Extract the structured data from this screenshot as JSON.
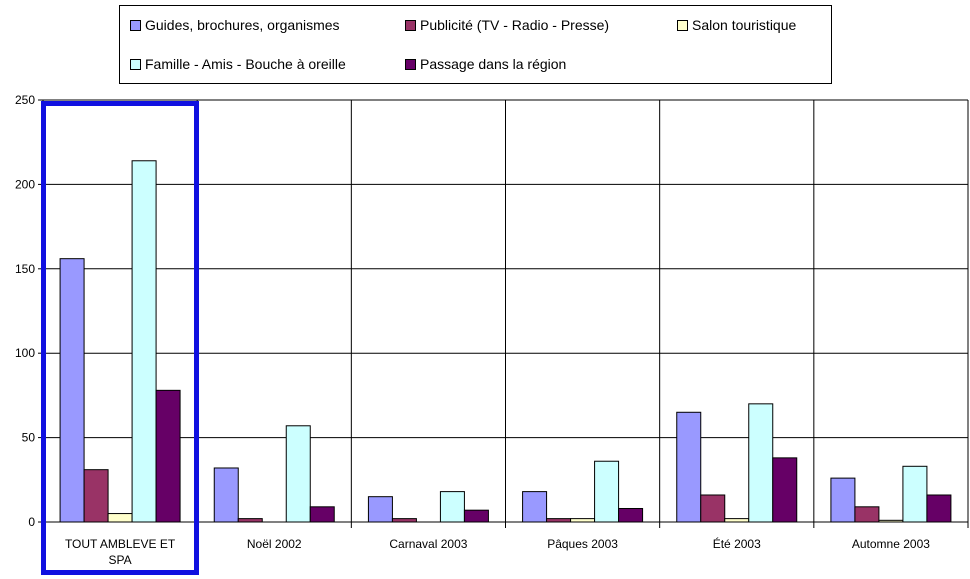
{
  "chart_data": {
    "type": "bar",
    "title": "",
    "xlabel": "",
    "ylabel": "",
    "ylim": [
      0,
      250
    ],
    "yticks": [
      0,
      50,
      100,
      150,
      200,
      250
    ],
    "grid": true,
    "legend_position": "top",
    "highlighted_category": "TOUT AMBLEVE ET SPA",
    "categories": [
      "TOUT AMBLEVE ET SPA",
      "Noël 2002",
      "Carnaval 2003",
      "Pâques 2003",
      "Été 2003",
      "Automne 2003"
    ],
    "series": [
      {
        "name": "Guides, brochures, organismes",
        "color": "#9999ff",
        "values": [
          156,
          32,
          15,
          18,
          65,
          26
        ]
      },
      {
        "name": "Publicité (TV - Radio - Presse)",
        "color": "#993366",
        "values": [
          31,
          2,
          2,
          2,
          16,
          9
        ]
      },
      {
        "name": "Salon touristique",
        "color": "#ffffcc",
        "values": [
          5,
          0,
          0,
          2,
          2,
          1
        ]
      },
      {
        "name": "Famille - Amis - Bouche à oreille",
        "color": "#ccffff",
        "values": [
          214,
          57,
          18,
          36,
          70,
          33
        ]
      },
      {
        "name": "Passage dans la région",
        "color": "#660066",
        "values": [
          78,
          9,
          7,
          8,
          38,
          16
        ]
      }
    ]
  }
}
